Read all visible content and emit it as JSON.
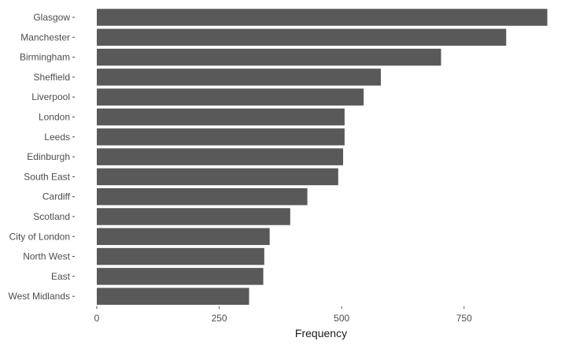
{
  "chart_data": {
    "type": "bar",
    "orientation": "horizontal",
    "categories": [
      "Glasgow",
      "Manchester",
      "Birmingham",
      "Sheffield",
      "Liverpool",
      "London",
      "Leeds",
      "Edinburgh",
      "South East",
      "Cardiff",
      "Scotland",
      "City of London",
      "North West",
      "East",
      "West Midlands"
    ],
    "values": [
      920,
      836,
      703,
      580,
      545,
      506,
      506,
      503,
      493,
      430,
      395,
      353,
      342,
      340,
      311
    ],
    "xlabel": "Frequency",
    "ylabel": "",
    "xlim": [
      0,
      940
    ],
    "xticks": [
      0,
      250,
      500,
      750
    ],
    "xtick_labels": [
      "0",
      "250",
      "500",
      "750"
    ],
    "grid": false,
    "legend": "none",
    "bar_color": "#595959"
  }
}
